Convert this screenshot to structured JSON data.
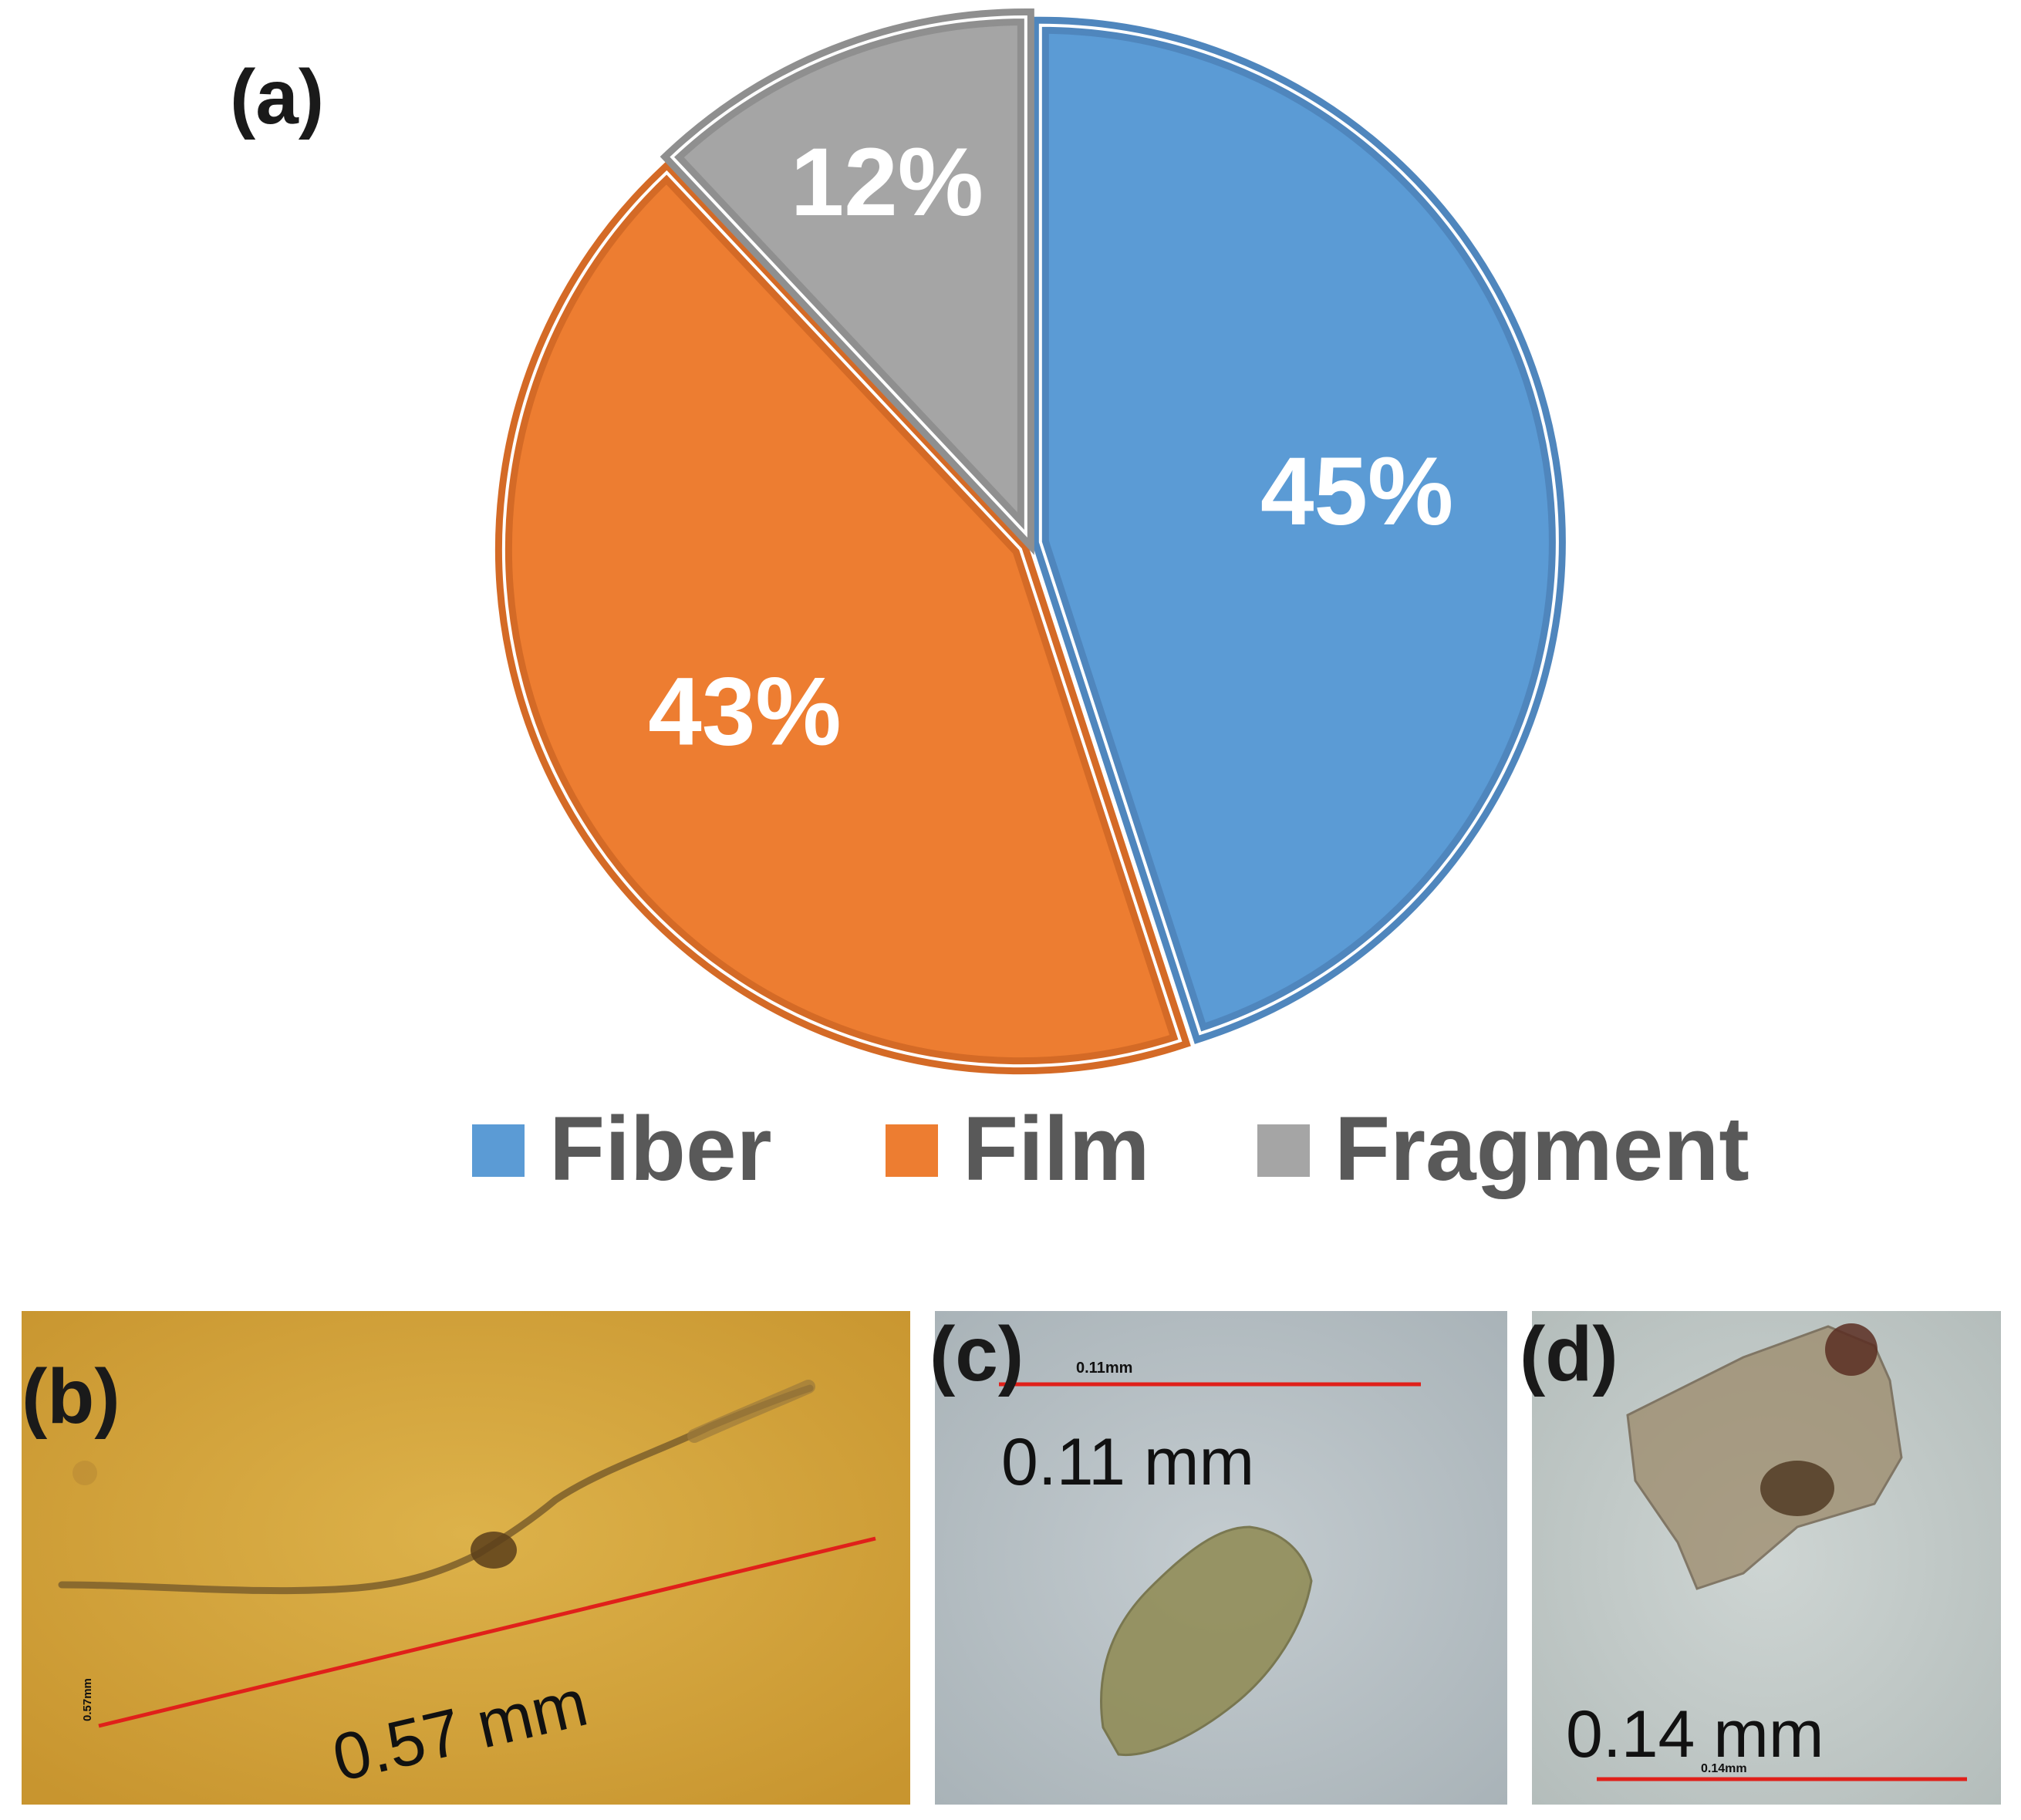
{
  "panels": {
    "a": "(a)",
    "b": "(b)",
    "c": "(c)",
    "d": "(d)"
  },
  "chart_data": {
    "type": "pie",
    "title": "",
    "legend_position": "bottom",
    "slices": [
      {
        "name": "Fiber",
        "value": 45,
        "label": "45%",
        "color": "#5b9bd5",
        "edge": "#4f86bd"
      },
      {
        "name": "Film",
        "value": 43,
        "label": "43%",
        "color": "#ed7d31",
        "edge": "#d46a26"
      },
      {
        "name": "Fragment",
        "value": 12,
        "label": "12%",
        "color": "#a5a5a5",
        "edge": "#8f8f8f"
      }
    ]
  },
  "micrographs": {
    "b": {
      "measure": "0.57 mm",
      "scale_tag": "0.57mm",
      "background": "#d4a43e",
      "particle": "fiber"
    },
    "c": {
      "measure": "0.11 mm",
      "scale_tag": "0.11mm",
      "background": "#b9c2c7",
      "particle": "film"
    },
    "d": {
      "measure": "0.14 mm",
      "scale_tag": "0.14mm",
      "background": "#c4ccca",
      "particle": "fragment"
    }
  }
}
